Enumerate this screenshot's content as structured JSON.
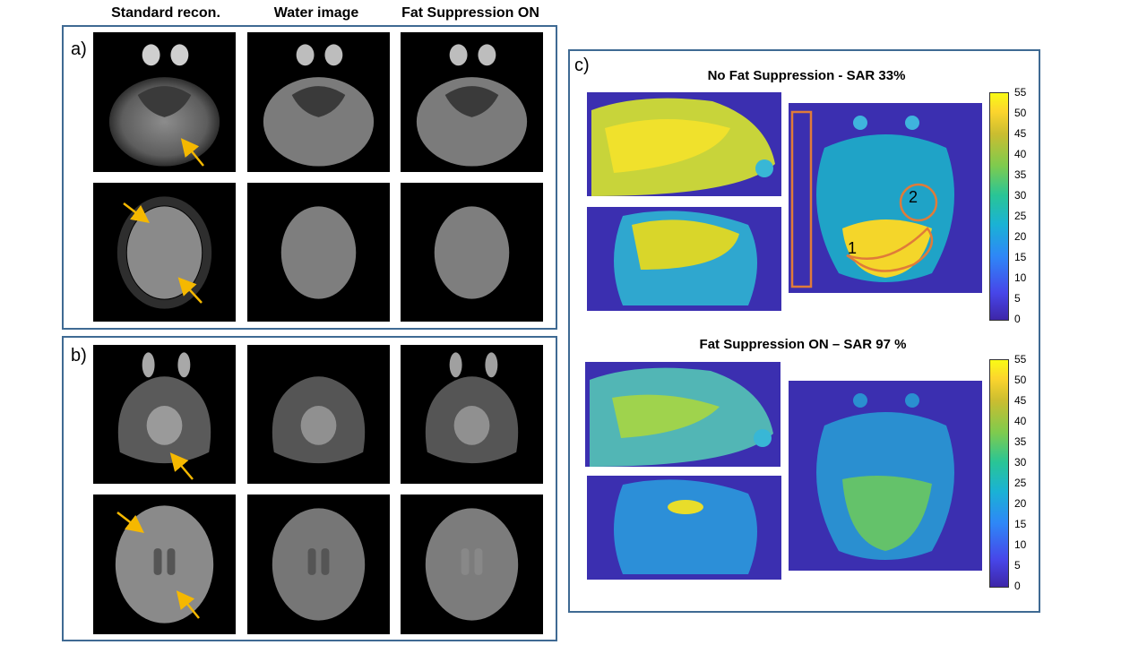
{
  "column_headers": [
    "Standard recon.",
    "Water image",
    "Fat Suppression ON"
  ],
  "panels": {
    "a": {
      "label": "a)"
    },
    "b": {
      "label": "b)"
    },
    "c": {
      "label": "c)",
      "top_title": "No Fat Suppression  - SAR 33%",
      "bottom_title": "Fat Suppression ON – SAR 97 %",
      "roi_labels": [
        "1",
        "2"
      ],
      "colorbar_ticks": [
        "55",
        "50",
        "45",
        "40",
        "35",
        "30",
        "25",
        "20",
        "15",
        "10",
        "5",
        "0"
      ]
    }
  },
  "colors": {
    "panel_border": "#3f6a93",
    "arrow": "#f5b800",
    "roi": "#e07b39"
  }
}
